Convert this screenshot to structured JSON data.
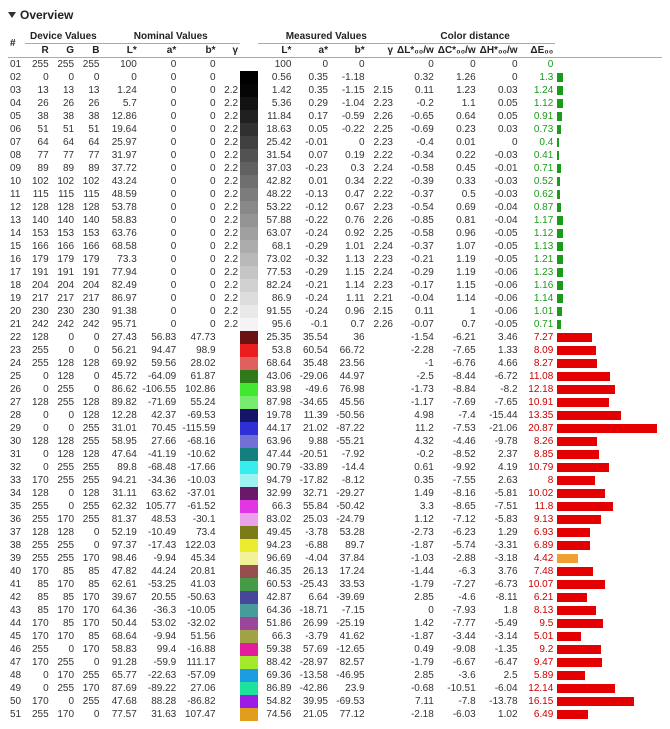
{
  "title": "Overview",
  "headers": {
    "idx": "#",
    "device": "Device Values",
    "nominal": "Nominal Values",
    "measured": "Measured Values",
    "distance": "Color distance",
    "R": "R",
    "G": "G",
    "B": "B",
    "L": "L*",
    "a": "a*",
    "b": "b*",
    "gamma": "γ",
    "dL": "ΔL*₀₀/w",
    "dC": "ΔC*₀₀/w",
    "dH": "ΔH*₀₀/w",
    "dE": "ΔE₀₀"
  },
  "bar_max": 22,
  "rows": [
    {
      "i": "01",
      "r": 255,
      "g": 255,
      "b": 255,
      "nL": 100,
      "na": 0,
      "nb": 0,
      "ng": null,
      "sw": "#ffffff",
      "mL": 100,
      "ma": 0,
      "mb": 0,
      "mg": null,
      "dL": 0,
      "dC": 0,
      "dH": 0,
      "dE": 0,
      "vis": "green",
      "bar": null
    },
    {
      "i": "02",
      "r": 0,
      "g": 0,
      "b": 0,
      "nL": 0,
      "na": 0,
      "nb": 0,
      "ng": null,
      "sw": "#000000",
      "mL": 0.56,
      "ma": 0.35,
      "mb": -1.18,
      "mg": null,
      "dL": 0.32,
      "dC": 1.26,
      "dH": 0,
      "dE": 1.3,
      "vis": "green",
      "bar": "#1a9b1a"
    },
    {
      "i": "03",
      "r": 13,
      "g": 13,
      "b": 13,
      "nL": 1.24,
      "na": 0,
      "nb": 0,
      "ng": 2.2,
      "sw": "#050505",
      "mL": 1.42,
      "ma": 0.35,
      "mb": -1.15,
      "mg": 2.15,
      "dL": 0.11,
      "dC": 1.23,
      "dH": 0.03,
      "dE": 1.24,
      "vis": "green",
      "bar": "#1a9b1a"
    },
    {
      "i": "04",
      "r": 26,
      "g": 26,
      "b": 26,
      "nL": 5.7,
      "na": 0,
      "nb": 0,
      "ng": 2.2,
      "sw": "#121212",
      "mL": 5.36,
      "ma": 0.29,
      "mb": -1.04,
      "mg": 2.23,
      "dL": -0.2,
      "dC": 1.1,
      "dH": 0.05,
      "dE": 1.12,
      "vis": "green",
      "bar": "#1a9b1a"
    },
    {
      "i": "05",
      "r": 38,
      "g": 38,
      "b": 38,
      "nL": 12.86,
      "na": 0,
      "nb": 0,
      "ng": 2.2,
      "sw": "#202020",
      "mL": 11.84,
      "ma": 0.17,
      "mb": -0.59,
      "mg": 2.26,
      "dL": -0.65,
      "dC": 0.64,
      "dH": 0.05,
      "dE": 0.91,
      "vis": "green",
      "bar": "#1a9b1a"
    },
    {
      "i": "06",
      "r": 51,
      "g": 51,
      "b": 51,
      "nL": 19.64,
      "na": 0,
      "nb": 0,
      "ng": 2.2,
      "sw": "#303030",
      "mL": 18.63,
      "ma": 0.05,
      "mb": -0.22,
      "mg": 2.25,
      "dL": -0.69,
      "dC": 0.23,
      "dH": 0.03,
      "dE": 0.73,
      "vis": "green",
      "bar": "#1a9b1a"
    },
    {
      "i": "07",
      "r": 64,
      "g": 64,
      "b": 64,
      "nL": 25.97,
      "na": 0,
      "nb": 0,
      "ng": 2.2,
      "sw": "#404040",
      "mL": 25.42,
      "ma": -0.01,
      "mb": 0,
      "mg": 2.23,
      "dL": -0.4,
      "dC": 0.01,
      "dH": 0,
      "dE": 0.4,
      "vis": "green",
      "bar": "#1a9b1a"
    },
    {
      "i": "08",
      "r": 77,
      "g": 77,
      "b": 77,
      "nL": 31.97,
      "na": 0,
      "nb": 0,
      "ng": 2.2,
      "sw": "#525252",
      "mL": 31.54,
      "ma": 0.07,
      "mb": 0.19,
      "mg": 2.22,
      "dL": -0.34,
      "dC": 0.22,
      "dH": -0.03,
      "dE": 0.41,
      "vis": "green",
      "bar": "#1a9b1a"
    },
    {
      "i": "09",
      "r": 89,
      "g": 89,
      "b": 89,
      "nL": 37.72,
      "na": 0,
      "nb": 0,
      "ng": 2.2,
      "sw": "#616161",
      "mL": 37.03,
      "ma": -0.23,
      "mb": 0.3,
      "mg": 2.24,
      "dL": -0.58,
      "dC": 0.45,
      "dH": -0.01,
      "dE": 0.71,
      "vis": "green",
      "bar": "#1a9b1a"
    },
    {
      "i": "10",
      "r": 102,
      "g": 102,
      "b": 102,
      "nL": 43.24,
      "na": 0,
      "nb": 0,
      "ng": 2.2,
      "sw": "#6f6f6f",
      "mL": 42.82,
      "ma": 0.01,
      "mb": 0.34,
      "mg": 2.22,
      "dL": -0.39,
      "dC": 0.33,
      "dH": -0.03,
      "dE": 0.52,
      "vis": "green",
      "bar": "#1a9b1a"
    },
    {
      "i": "11",
      "r": 115,
      "g": 115,
      "b": 115,
      "nL": 48.59,
      "na": 0,
      "nb": 0,
      "ng": 2.2,
      "sw": "#7c7c7c",
      "mL": 48.22,
      "ma": -0.13,
      "mb": 0.47,
      "mg": 2.22,
      "dL": -0.37,
      "dC": 0.5,
      "dH": -0.03,
      "dE": 0.62,
      "vis": "green",
      "bar": "#1a9b1a"
    },
    {
      "i": "12",
      "r": 128,
      "g": 128,
      "b": 128,
      "nL": 53.78,
      "na": 0,
      "nb": 0,
      "ng": 2.2,
      "sw": "#888888",
      "mL": 53.22,
      "ma": -0.12,
      "mb": 0.67,
      "mg": 2.23,
      "dL": -0.54,
      "dC": 0.69,
      "dH": -0.04,
      "dE": 0.87,
      "vis": "green",
      "bar": "#1a9b1a"
    },
    {
      "i": "13",
      "r": 140,
      "g": 140,
      "b": 140,
      "nL": 58.83,
      "na": 0,
      "nb": 0,
      "ng": 2.2,
      "sw": "#949494",
      "mL": 57.88,
      "ma": -0.22,
      "mb": 0.76,
      "mg": 2.26,
      "dL": -0.85,
      "dC": 0.81,
      "dH": -0.04,
      "dE": 1.17,
      "vis": "green",
      "bar": "#1a9b1a"
    },
    {
      "i": "14",
      "r": 153,
      "g": 153,
      "b": 153,
      "nL": 63.76,
      "na": 0,
      "nb": 0,
      "ng": 2.2,
      "sw": "#a0a0a0",
      "mL": 63.07,
      "ma": -0.24,
      "mb": 0.92,
      "mg": 2.25,
      "dL": -0.58,
      "dC": 0.96,
      "dH": -0.05,
      "dE": 1.12,
      "vis": "green",
      "bar": "#1a9b1a"
    },
    {
      "i": "15",
      "r": 166,
      "g": 166,
      "b": 166,
      "nL": 68.58,
      "na": 0,
      "nb": 0,
      "ng": 2.2,
      "sw": "#acacac",
      "mL": 68.1,
      "ma": -0.29,
      "mb": 1.01,
      "mg": 2.24,
      "dL": -0.37,
      "dC": 1.07,
      "dH": -0.05,
      "dE": 1.13,
      "vis": "green",
      "bar": "#1a9b1a"
    },
    {
      "i": "16",
      "r": 179,
      "g": 179,
      "b": 179,
      "nL": 73.3,
      "na": 0,
      "nb": 0,
      "ng": 2.2,
      "sw": "#b9b9b9",
      "mL": 73.02,
      "ma": -0.32,
      "mb": 1.13,
      "mg": 2.23,
      "dL": -0.21,
      "dC": 1.19,
      "dH": -0.05,
      "dE": 1.21,
      "vis": "green",
      "bar": "#1a9b1a"
    },
    {
      "i": "17",
      "r": 191,
      "g": 191,
      "b": 191,
      "nL": 77.94,
      "na": 0,
      "nb": 0,
      "ng": 2.2,
      "sw": "#c5c5c5",
      "mL": 77.53,
      "ma": -0.29,
      "mb": 1.15,
      "mg": 2.24,
      "dL": -0.29,
      "dC": 1.19,
      "dH": -0.06,
      "dE": 1.23,
      "vis": "green",
      "bar": "#1a9b1a"
    },
    {
      "i": "18",
      "r": 204,
      "g": 204,
      "b": 204,
      "nL": 82.49,
      "na": 0,
      "nb": 0,
      "ng": 2.2,
      "sw": "#d1d1d1",
      "mL": 82.24,
      "ma": -0.21,
      "mb": 1.14,
      "mg": 2.23,
      "dL": -0.17,
      "dC": 1.15,
      "dH": -0.06,
      "dE": 1.16,
      "vis": "green",
      "bar": "#1a9b1a"
    },
    {
      "i": "19",
      "r": 217,
      "g": 217,
      "b": 217,
      "nL": 86.97,
      "na": 0,
      "nb": 0,
      "ng": 2.2,
      "sw": "#dddddd",
      "mL": 86.9,
      "ma": -0.24,
      "mb": 1.11,
      "mg": 2.21,
      "dL": -0.04,
      "dC": 1.14,
      "dH": -0.06,
      "dE": 1.14,
      "vis": "green",
      "bar": "#1a9b1a"
    },
    {
      "i": "20",
      "r": 230,
      "g": 230,
      "b": 230,
      "nL": 91.38,
      "na": 0,
      "nb": 0,
      "ng": 2.2,
      "sw": "#e9e9e9",
      "mL": 91.55,
      "ma": -0.24,
      "mb": 0.96,
      "mg": 2.15,
      "dL": 0.11,
      "dC": 1,
      "dH": -0.06,
      "dE": 1.01,
      "vis": "green",
      "bar": "#1a9b1a"
    },
    {
      "i": "21",
      "r": 242,
      "g": 242,
      "b": 242,
      "nL": 95.71,
      "na": 0,
      "nb": 0,
      "ng": 2.2,
      "sw": "#f4f4f4",
      "mL": 95.6,
      "ma": -0.1,
      "mb": 0.7,
      "mg": 2.26,
      "dL": -0.07,
      "dC": 0.7,
      "dH": -0.05,
      "dE": 0.71,
      "vis": "green",
      "bar": "#1a9b1a"
    },
    {
      "i": "22",
      "r": 128,
      "g": 0,
      "b": 0,
      "nL": 27.43,
      "na": 56.83,
      "nb": 47.73,
      "ng": null,
      "sw": "#6b1212",
      "mL": 25.35,
      "ma": 35.54,
      "mb": 36,
      "mg": null,
      "dL": -1.54,
      "dC": -6.21,
      "dH": 3.46,
      "dE": 7.27,
      "vis": "red",
      "bar": "#e40000"
    },
    {
      "i": "23",
      "r": 255,
      "g": 0,
      "b": 0,
      "nL": 56.21,
      "na": 94.47,
      "nb": 98.9,
      "ng": null,
      "sw": "#ea1e1e",
      "mL": 53.8,
      "ma": 60.54,
      "mb": 66.72,
      "mg": null,
      "dL": -2.28,
      "dC": -7.65,
      "dH": 1.33,
      "dE": 8.09,
      "vis": "red",
      "bar": "#e40000"
    },
    {
      "i": "24",
      "r": 255,
      "g": 128,
      "b": 128,
      "nL": 69.92,
      "na": 59.56,
      "nb": 28.02,
      "ng": null,
      "sw": "#e06060",
      "mL": 68.64,
      "ma": 35.48,
      "mb": 23.56,
      "mg": null,
      "dL": -1,
      "dC": -6.76,
      "dH": 4.66,
      "dE": 8.27,
      "vis": "red",
      "bar": "#e40000"
    },
    {
      "i": "25",
      "r": 0,
      "g": 128,
      "b": 0,
      "nL": 45.72,
      "na": -64.09,
      "nb": 61.87,
      "ng": null,
      "sw": "#2e7a18",
      "mL": 43.06,
      "ma": -29.06,
      "mb": 44.97,
      "mg": null,
      "dL": -2.5,
      "dC": -8.44,
      "dH": -6.72,
      "dE": 11.08,
      "vis": "red",
      "bar": "#e40000"
    },
    {
      "i": "26",
      "r": 0,
      "g": 255,
      "b": 0,
      "nL": 86.62,
      "na": -106.55,
      "nb": 102.86,
      "ng": null,
      "sw": "#42e82f",
      "mL": 83.98,
      "ma": -49.6,
      "mb": 76.98,
      "mg": null,
      "dL": -1.73,
      "dC": -8.84,
      "dH": -8.2,
      "dE": 12.18,
      "vis": "red",
      "bar": "#e40000"
    },
    {
      "i": "27",
      "r": 128,
      "g": 255,
      "b": 128,
      "nL": 89.82,
      "na": -71.69,
      "nb": 55.24,
      "ng": null,
      "sw": "#76eb6d",
      "mL": 87.98,
      "ma": -34.65,
      "mb": 45.56,
      "mg": null,
      "dL": -1.17,
      "dC": -7.69,
      "dH": -7.65,
      "dE": 10.91,
      "vis": "red",
      "bar": "#e40000"
    },
    {
      "i": "28",
      "r": 0,
      "g": 0,
      "b": 128,
      "nL": 12.28,
      "na": 42.37,
      "nb": -69.53,
      "ng": null,
      "sw": "#141468",
      "mL": 19.78,
      "ma": 11.39,
      "mb": -50.56,
      "mg": null,
      "dL": 4.98,
      "dC": -7.4,
      "dH": -15.44,
      "dE": 13.35,
      "vis": "red",
      "bar": "#e40000"
    },
    {
      "i": "29",
      "r": 0,
      "g": 0,
      "b": 255,
      "nL": 31.01,
      "na": 70.45,
      "nb": -115.59,
      "ng": null,
      "sw": "#2f2fd6",
      "mL": 44.17,
      "ma": 21.02,
      "mb": -87.22,
      "mg": null,
      "dL": 11.2,
      "dC": -7.53,
      "dH": -21.06,
      "dE": 20.87,
      "vis": "red",
      "bar": "#e40000"
    },
    {
      "i": "30",
      "r": 128,
      "g": 128,
      "b": 255,
      "nL": 58.95,
      "na": 27.66,
      "nb": -68.16,
      "ng": null,
      "sw": "#6f6fd6",
      "mL": 63.96,
      "ma": 9.88,
      "mb": -55.21,
      "mg": null,
      "dL": 4.32,
      "dC": -4.46,
      "dH": -9.78,
      "dE": 8.26,
      "vis": "red",
      "bar": "#e40000"
    },
    {
      "i": "31",
      "r": 0,
      "g": 128,
      "b": 128,
      "nL": 47.64,
      "na": -41.19,
      "nb": -10.62,
      "ng": null,
      "sw": "#137f7f",
      "mL": 47.44,
      "ma": -20.51,
      "mb": -7.92,
      "mg": null,
      "dL": -0.2,
      "dC": -8.52,
      "dH": 2.37,
      "dE": 8.85,
      "vis": "red",
      "bar": "#e40000"
    },
    {
      "i": "32",
      "r": 0,
      "g": 255,
      "b": 255,
      "nL": 89.8,
      "na": -68.48,
      "nb": -17.66,
      "ng": null,
      "sw": "#37eeee",
      "mL": 90.79,
      "ma": -33.89,
      "mb": -14.4,
      "mg": null,
      "dL": 0.61,
      "dC": -9.92,
      "dH": 4.19,
      "dE": 10.79,
      "vis": "red",
      "bar": "#e40000"
    },
    {
      "i": "33",
      "r": 170,
      "g": 255,
      "b": 255,
      "nL": 94.21,
      "na": -34.36,
      "nb": -10.03,
      "ng": null,
      "sw": "#9cf1f1",
      "mL": 94.79,
      "ma": -17.82,
      "mb": -8.12,
      "mg": null,
      "dL": 0.35,
      "dC": -7.55,
      "dH": 2.63,
      "dE": 8,
      "vis": "red",
      "bar": "#e40000"
    },
    {
      "i": "34",
      "r": 128,
      "g": 0,
      "b": 128,
      "nL": 31.11,
      "na": 63.62,
      "nb": -37.01,
      "ng": null,
      "sw": "#681a68",
      "mL": 32.99,
      "ma": 32.71,
      "mb": -29.27,
      "mg": null,
      "dL": 1.49,
      "dC": -8.16,
      "dH": -5.81,
      "dE": 10.02,
      "vis": "red",
      "bar": "#e40000"
    },
    {
      "i": "35",
      "r": 255,
      "g": 0,
      "b": 255,
      "nL": 62.32,
      "na": 105.77,
      "nb": -61.52,
      "ng": null,
      "sw": "#e236e2",
      "mL": 66.3,
      "ma": 55.84,
      "mb": -50.42,
      "mg": null,
      "dL": 3.3,
      "dC": -8.65,
      "dH": -7.51,
      "dE": 11.8,
      "vis": "red",
      "bar": "#e40000"
    },
    {
      "i": "36",
      "r": 255,
      "g": 170,
      "b": 255,
      "nL": 81.37,
      "na": 48.53,
      "nb": -30.1,
      "ng": null,
      "sw": "#eaa2ea",
      "mL": 83.02,
      "ma": 25.03,
      "mb": -24.79,
      "mg": null,
      "dL": 1.12,
      "dC": -7.12,
      "dH": -5.83,
      "dE": 9.13,
      "vis": "red",
      "bar": "#e40000"
    },
    {
      "i": "37",
      "r": 128,
      "g": 128,
      "b": 0,
      "nL": 52.19,
      "na": -10.49,
      "nb": 73.4,
      "ng": null,
      "sw": "#7b7b18",
      "mL": 49.45,
      "ma": -3.78,
      "mb": 53.28,
      "mg": null,
      "dL": -2.73,
      "dC": -6.23,
      "dH": 1.29,
      "dE": 6.93,
      "vis": "red",
      "bar": "#e40000"
    },
    {
      "i": "38",
      "r": 255,
      "g": 255,
      "b": 0,
      "nL": 97.37,
      "na": -17.43,
      "nb": 122.03,
      "ng": null,
      "sw": "#ecec2f",
      "mL": 94.23,
      "ma": -6.88,
      "mb": 89.7,
      "mg": null,
      "dL": -1.87,
      "dC": -5.74,
      "dH": -3.31,
      "dE": 6.89,
      "vis": "red",
      "bar": "#e40000"
    },
    {
      "i": "39",
      "r": 255,
      "g": 255,
      "b": 170,
      "nL": 98.46,
      "na": -9.94,
      "nb": 45.34,
      "ng": null,
      "sw": "#f1f198",
      "mL": 96.69,
      "ma": -4.04,
      "mb": 37.84,
      "mg": null,
      "dL": -1.03,
      "dC": -2.88,
      "dH": -3.18,
      "dE": 4.42,
      "vis": "red",
      "bar": "#f0a030"
    },
    {
      "i": "40",
      "r": 170,
      "g": 85,
      "b": 85,
      "nL": 47.82,
      "na": 44.24,
      "nb": 20.81,
      "ng": null,
      "sw": "#9a4d4d",
      "mL": 46.35,
      "ma": 26.13,
      "mb": 17.24,
      "mg": null,
      "dL": -1.44,
      "dC": -6.3,
      "dH": 3.76,
      "dE": 7.48,
      "vis": "red",
      "bar": "#e40000"
    },
    {
      "i": "41",
      "r": 85,
      "g": 170,
      "b": 85,
      "nL": 62.61,
      "na": -53.25,
      "nb": 41.03,
      "ng": null,
      "sw": "#469b46",
      "mL": 60.53,
      "ma": -25.43,
      "mb": 33.53,
      "mg": null,
      "dL": -1.79,
      "dC": -7.27,
      "dH": -6.73,
      "dE": 10.07,
      "vis": "red",
      "bar": "#e40000"
    },
    {
      "i": "42",
      "r": 85,
      "g": 85,
      "b": 170,
      "nL": 39.67,
      "na": 20.55,
      "nb": -50.63,
      "ng": null,
      "sw": "#46469b",
      "mL": 42.87,
      "ma": 6.64,
      "mb": -39.69,
      "mg": null,
      "dL": 2.85,
      "dC": -4.6,
      "dH": -8.11,
      "dE": 6.21,
      "vis": "red",
      "bar": "#e40000"
    },
    {
      "i": "43",
      "r": 85,
      "g": 170,
      "b": 170,
      "nL": 64.36,
      "na": -36.3,
      "nb": -10.05,
      "ng": null,
      "sw": "#469b9b",
      "mL": 64.36,
      "ma": -18.71,
      "mb": -7.15,
      "mg": null,
      "dL": 0,
      "dC": -7.93,
      "dH": 1.8,
      "dE": 8.13,
      "vis": "red",
      "bar": "#e40000"
    },
    {
      "i": "44",
      "r": 170,
      "g": 85,
      "b": 170,
      "nL": 50.44,
      "na": 53.02,
      "nb": -32.02,
      "ng": null,
      "sw": "#9b469b",
      "mL": 51.86,
      "ma": 26.99,
      "mb": -25.19,
      "mg": null,
      "dL": 1.42,
      "dC": -7.77,
      "dH": -5.49,
      "dE": 9.5,
      "vis": "red",
      "bar": "#e40000"
    },
    {
      "i": "45",
      "r": 170,
      "g": 170,
      "b": 85,
      "nL": 68.64,
      "na": -9.94,
      "nb": 51.56,
      "ng": null,
      "sw": "#a1a146",
      "mL": 66.3,
      "ma": -3.79,
      "mb": 41.62,
      "mg": null,
      "dL": -1.87,
      "dC": -3.44,
      "dH": -3.14,
      "dE": 5.01,
      "vis": "red",
      "bar": "#e40000"
    },
    {
      "i": "46",
      "r": 255,
      "g": 0,
      "b": 170,
      "nL": 58.83,
      "na": 99.4,
      "nb": -16.88,
      "ng": null,
      "sw": "#e21c9d",
      "mL": 59.38,
      "ma": 57.69,
      "mb": -12.65,
      "mg": null,
      "dL": 0.49,
      "dC": -9.08,
      "dH": -1.35,
      "dE": 9.2,
      "vis": "red",
      "bar": "#e40000"
    },
    {
      "i": "47",
      "r": 170,
      "g": 255,
      "b": 0,
      "nL": 91.28,
      "na": -59.9,
      "nb": 111.17,
      "ng": null,
      "sw": "#a5ea2a",
      "mL": 88.42,
      "ma": -28.97,
      "mb": 82.57,
      "mg": null,
      "dL": -1.79,
      "dC": -6.67,
      "dH": -6.47,
      "dE": 9.47,
      "vis": "red",
      "bar": "#e40000"
    },
    {
      "i": "48",
      "r": 0,
      "g": 170,
      "b": 255,
      "nL": 65.77,
      "na": -22.63,
      "nb": -57.09,
      "ng": null,
      "sw": "#1c9de2",
      "mL": 69.36,
      "ma": -13.58,
      "mb": -46.95,
      "mg": null,
      "dL": 2.85,
      "dC": -3.6,
      "dH": 2.5,
      "dE": 5.89,
      "vis": "red",
      "bar": "#e40000"
    },
    {
      "i": "49",
      "r": 0,
      "g": 255,
      "b": 170,
      "nL": 87.69,
      "na": -89.22,
      "nb": 27.06,
      "ng": null,
      "sw": "#1ce29d",
      "mL": 86.89,
      "ma": -42.86,
      "mb": 23.9,
      "mg": null,
      "dL": -0.68,
      "dC": -10.51,
      "dH": -6.04,
      "dE": 12.14,
      "vis": "red",
      "bar": "#e40000"
    },
    {
      "i": "50",
      "r": 170,
      "g": 0,
      "b": 255,
      "nL": 47.68,
      "na": 88.28,
      "nb": -86.82,
      "ng": null,
      "sw": "#9b1ce2",
      "mL": 54.82,
      "ma": 39.95,
      "mb": -69.53,
      "mg": null,
      "dL": 7.11,
      "dC": -7.8,
      "dH": -13.78,
      "dE": 16.15,
      "vis": "red",
      "bar": "#e40000"
    },
    {
      "i": "51",
      "r": 255,
      "g": 170,
      "b": 0,
      "nL": 77.57,
      "na": 31.63,
      "nb": 107.47,
      "ng": null,
      "sw": "#e29d1c",
      "mL": 74.56,
      "ma": 21.05,
      "mb": 77.12,
      "mg": null,
      "dL": -2.18,
      "dC": -6.03,
      "dH": 1.02,
      "dE": 6.49,
      "vis": "red",
      "bar": "#e40000"
    }
  ]
}
